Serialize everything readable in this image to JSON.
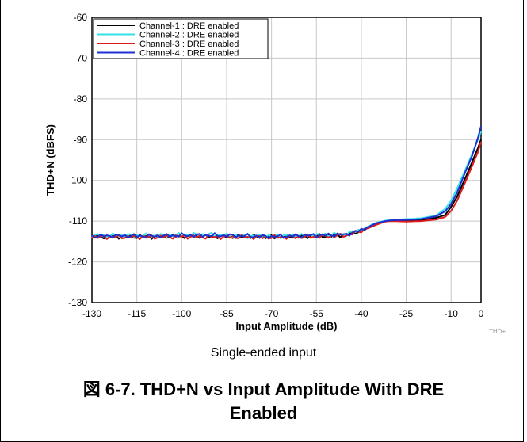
{
  "chart_data": {
    "type": "line",
    "ylabel": "THD+N (dBFS)",
    "xlabel": "Input Amplitude (dB)",
    "xlim": [
      -130,
      0
    ],
    "ylim": [
      -130,
      -60
    ],
    "xticks": [
      -130,
      -115,
      -100,
      -85,
      -70,
      -55,
      -40,
      -25,
      -10,
      0
    ],
    "yticks": [
      -60,
      -70,
      -80,
      -90,
      -100,
      -110,
      -120,
      -130
    ],
    "grid": true,
    "legend_position": "top-left",
    "watermark": "THD+",
    "series": [
      {
        "name": "Channel-1 : DRE enabled",
        "color": "#000000",
        "x": [
          -130,
          -120,
          -110,
          -100,
          -90,
          -80,
          -70,
          -60,
          -50,
          -45,
          -40,
          -35,
          -32,
          -30,
          -25,
          -20,
          -15,
          -12,
          -10,
          -8,
          -5,
          -3,
          -1,
          0
        ],
        "y": [
          -113.8,
          -113.8,
          -113.8,
          -113.7,
          -113.8,
          -113.8,
          -113.9,
          -113.8,
          -113.6,
          -113.4,
          -112.3,
          -110.8,
          -110.0,
          -109.9,
          -110.0,
          -109.8,
          -109.2,
          -108.5,
          -106.5,
          -104.0,
          -99.0,
          -95.5,
          -92.0,
          -90.0
        ]
      },
      {
        "name": "Channel-2 : DRE enabled",
        "color": "#33e0e8",
        "x": [
          -130,
          -120,
          -110,
          -100,
          -90,
          -80,
          -70,
          -60,
          -50,
          -45,
          -40,
          -35,
          -32,
          -30,
          -25,
          -20,
          -15,
          -12,
          -10,
          -8,
          -5,
          -3,
          -1,
          0
        ],
        "y": [
          -113.6,
          -113.5,
          -113.6,
          -113.4,
          -113.3,
          -113.7,
          -113.7,
          -113.5,
          -113.3,
          -113.2,
          -112.1,
          -110.4,
          -109.9,
          -109.7,
          -109.5,
          -109.3,
          -108.6,
          -107.0,
          -105.0,
          -102.0,
          -97.0,
          -93.5,
          -90.0,
          -88.0
        ]
      },
      {
        "name": "Channel-3 : DRE enabled",
        "color": "#dd1c1c",
        "x": [
          -130,
          -120,
          -110,
          -100,
          -90,
          -80,
          -70,
          -60,
          -50,
          -45,
          -40,
          -35,
          -32,
          -30,
          -25,
          -20,
          -15,
          -12,
          -10,
          -8,
          -5,
          -3,
          -1,
          0
        ],
        "y": [
          -113.9,
          -113.9,
          -113.9,
          -113.8,
          -113.9,
          -113.9,
          -114.0,
          -113.9,
          -113.7,
          -113.5,
          -112.4,
          -110.9,
          -110.1,
          -110.0,
          -110.1,
          -110.0,
          -109.6,
          -109.0,
          -107.5,
          -105.0,
          -100.0,
          -96.5,
          -93.0,
          -90.5
        ]
      },
      {
        "name": "Channel-4 : DRE enabled",
        "color": "#1f2fd0",
        "x": [
          -130,
          -120,
          -110,
          -100,
          -90,
          -80,
          -70,
          -60,
          -50,
          -45,
          -40,
          -35,
          -32,
          -30,
          -25,
          -20,
          -15,
          -12,
          -10,
          -8,
          -5,
          -3,
          -1,
          0
        ],
        "y": [
          -113.7,
          -113.6,
          -113.7,
          -113.5,
          -113.5,
          -113.6,
          -113.8,
          -113.6,
          -113.4,
          -113.3,
          -112.2,
          -110.5,
          -110.0,
          -109.8,
          -109.7,
          -109.5,
          -108.8,
          -107.6,
          -105.8,
          -103.0,
          -97.5,
          -94.0,
          -89.5,
          -86.7
        ]
      }
    ]
  },
  "subtitle": "Single-ended input",
  "caption_line1": "図 6-7. THD+N vs Input Amplitude With DRE",
  "caption_line2": "Enabled"
}
